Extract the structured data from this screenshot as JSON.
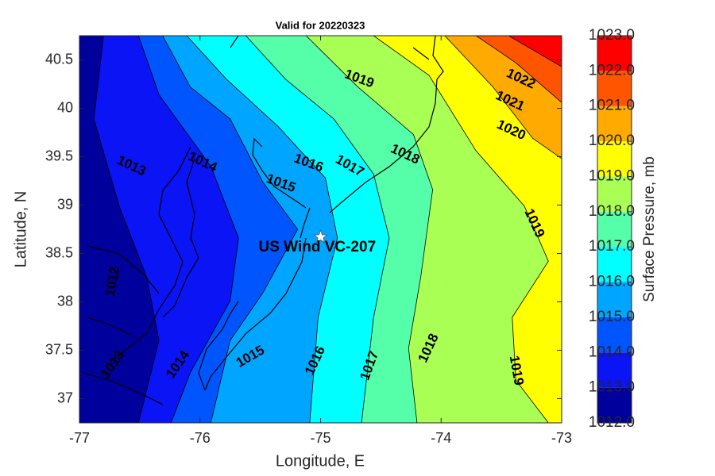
{
  "chart_data": {
    "type": "contour_map",
    "title": "Valid for 20220323",
    "xlabel": "Longitude, E",
    "ylabel": "Latitude, N",
    "xlim": [
      -77,
      -73
    ],
    "ylim": [
      36.75,
      40.75
    ],
    "xticks": [
      -77,
      -76,
      -75,
      -74,
      -73
    ],
    "yticks": [
      37,
      37.5,
      38,
      38.5,
      39,
      39.5,
      40,
      40.5
    ],
    "colorbar": {
      "label": "Surface Pressure, mb",
      "ticks": [
        {
          "value": 1012,
          "label": "1012.0"
        },
        {
          "value": 1013,
          "label": "1013.0"
        },
        {
          "value": 1014,
          "label": "1014.0"
        },
        {
          "value": 1015,
          "label": "1015.0"
        },
        {
          "value": 1016,
          "label": "1016.0"
        },
        {
          "value": 1017,
          "label": "1017.0"
        },
        {
          "value": 1018,
          "label": "1018.0"
        },
        {
          "value": 1019,
          "label": "1019.0"
        },
        {
          "value": 1020,
          "label": "1020.0"
        },
        {
          "value": 1021,
          "label": "1021.0"
        },
        {
          "value": 1022,
          "label": "1022.0"
        },
        {
          "value": 1023,
          "label": "1023.0"
        }
      ],
      "colors": [
        "#00009c",
        "#0a14f5",
        "#0055ff",
        "#00a5ff",
        "#00ffff",
        "#55ffaa",
        "#aaff55",
        "#ffff00",
        "#ffaa00",
        "#ff5500",
        "#ff0000"
      ]
    },
    "contours": [
      {
        "level": 1013,
        "points": [
          [
            -76.8,
            40.75
          ],
          [
            -76.88,
            39.89
          ],
          [
            -76.67,
            38.99
          ],
          [
            -76.44,
            38.25
          ],
          [
            -76.34,
            37.6
          ],
          [
            -76.51,
            36.75
          ]
        ]
      },
      {
        "level": 1014,
        "points": [
          [
            -76.51,
            40.75
          ],
          [
            -76.34,
            40.14
          ],
          [
            -75.91,
            39.4
          ],
          [
            -75.68,
            38.66
          ],
          [
            -75.75,
            38.01
          ],
          [
            -76.08,
            37.27
          ],
          [
            -76.24,
            36.75
          ]
        ]
      },
      {
        "level": 1015,
        "points": [
          [
            -76.31,
            40.75
          ],
          [
            -76.08,
            40.22
          ],
          [
            -75.75,
            39.89
          ],
          [
            -75.48,
            39.24
          ],
          [
            -75.19,
            38.75
          ],
          [
            -75.48,
            38.09
          ],
          [
            -75.75,
            37.6
          ],
          [
            -75.91,
            36.75
          ]
        ]
      },
      {
        "level": 1016,
        "points": [
          [
            -76.11,
            40.75
          ],
          [
            -75.78,
            40.3
          ],
          [
            -75.35,
            39.81
          ],
          [
            -74.96,
            39.28
          ],
          [
            -74.86,
            38.66
          ],
          [
            -75.02,
            37.84
          ],
          [
            -75.09,
            36.75
          ]
        ]
      },
      {
        "level": 1017,
        "points": [
          [
            -75.62,
            40.75
          ],
          [
            -75.29,
            40.3
          ],
          [
            -74.89,
            39.89
          ],
          [
            -74.56,
            39.32
          ],
          [
            -74.43,
            38.66
          ],
          [
            -74.56,
            37.84
          ],
          [
            -74.66,
            36.75
          ]
        ]
      },
      {
        "level": 1018,
        "points": [
          [
            -75.12,
            40.75
          ],
          [
            -74.69,
            40.22
          ],
          [
            -74.23,
            39.73
          ],
          [
            -74.07,
            39.16
          ],
          [
            -74.17,
            38.25
          ],
          [
            -74.27,
            37.52
          ],
          [
            -74.2,
            36.75
          ]
        ]
      },
      {
        "level": 1019,
        "points": [
          [
            -74.56,
            40.75
          ],
          [
            -74.1,
            40.34
          ],
          [
            -73.71,
            39.56
          ],
          [
            -73.31,
            38.99
          ],
          [
            -73.11,
            38.42
          ],
          [
            -73.41,
            37.84
          ],
          [
            -73.38,
            37.19
          ],
          [
            -73.11,
            36.75
          ]
        ]
      },
      {
        "level": 1020,
        "points": [
          [
            -73.97,
            40.75
          ],
          [
            -73.57,
            40.22
          ],
          [
            -73.24,
            39.69
          ],
          [
            -73.0,
            39.48
          ]
        ]
      },
      {
        "level": 1021,
        "points": [
          [
            -73.71,
            40.75
          ],
          [
            -73.38,
            40.47
          ],
          [
            -73.0,
            40.06
          ]
        ]
      },
      {
        "level": 1022,
        "points": [
          [
            -73.44,
            40.75
          ],
          [
            -73.0,
            40.43
          ]
        ]
      }
    ],
    "contour_labels": [
      {
        "lon": -74.68,
        "lat": 40.3,
        "value": 1019
      },
      {
        "lon": -73.34,
        "lat": 40.3,
        "value": 1022
      },
      {
        "lon": -73.43,
        "lat": 40.07,
        "value": 1021
      },
      {
        "lon": -73.42,
        "lat": 39.77,
        "value": 1020
      },
      {
        "lon": -74.3,
        "lat": 39.52,
        "value": 1018
      },
      {
        "lon": -75.1,
        "lat": 39.43,
        "value": 1016
      },
      {
        "lon": -74.76,
        "lat": 39.4,
        "value": 1017
      },
      {
        "lon": -75.33,
        "lat": 39.22,
        "value": 1015
      },
      {
        "lon": -75.98,
        "lat": 39.44,
        "value": 1014
      },
      {
        "lon": -76.57,
        "lat": 39.4,
        "value": 1013
      },
      {
        "lon": -73.23,
        "lat": 38.81,
        "value": 1019
      },
      {
        "lon": -76.72,
        "lat": 38.21,
        "value": 1012
      },
      {
        "lon": -76.18,
        "lat": 37.35,
        "value": 1014
      },
      {
        "lon": -76.72,
        "lat": 37.35,
        "value": 1013
      },
      {
        "lon": -75.58,
        "lat": 37.43,
        "value": 1015
      },
      {
        "lon": -75.04,
        "lat": 37.39,
        "value": 1016
      },
      {
        "lon": -74.59,
        "lat": 37.34,
        "value": 1017
      },
      {
        "lon": -74.1,
        "lat": 37.52,
        "value": 1018
      },
      {
        "lon": -73.38,
        "lat": 37.29,
        "value": 1019
      }
    ],
    "site": {
      "name": "US Wind VC-207",
      "lon": -75.0,
      "lat": 38.67
    }
  }
}
